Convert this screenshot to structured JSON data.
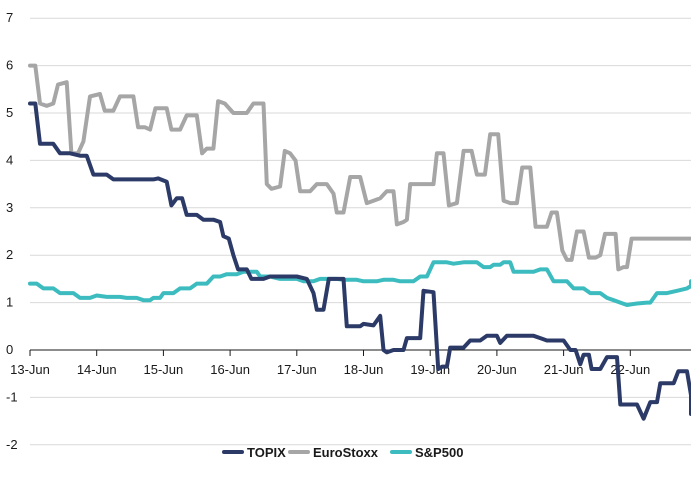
{
  "chart_data": {
    "type": "line",
    "title": "",
    "xlabel": "",
    "ylabel": "",
    "ylim": [
      -2,
      7
    ],
    "yticks": [
      -2,
      -1,
      0,
      1,
      2,
      3,
      4,
      5,
      6,
      7
    ],
    "categories": [
      "13-Jun",
      "14-Jun",
      "15-Jun",
      "16-Jun",
      "17-Jun",
      "18-Jun",
      "19-Jun",
      "20-Jun",
      "21-Jun",
      "22-Jun"
    ],
    "grid": "horizontal",
    "legend_position": "bottom-center",
    "colors": {
      "TOPIX": "#2b3a67",
      "EuroStoxx": "#a6a6a6",
      "S&P500": "#3dbcc0",
      "grid": "#d9d9d9",
      "axis": "#1a1a1a"
    },
    "series": [
      {
        "name": "TOPIX",
        "points": [
          [
            0.0,
            5.2
          ],
          [
            0.08,
            5.2
          ],
          [
            0.15,
            4.35
          ],
          [
            0.35,
            4.35
          ],
          [
            0.45,
            4.15
          ],
          [
            0.6,
            4.15
          ],
          [
            0.75,
            4.1
          ],
          [
            0.85,
            4.1
          ],
          [
            0.95,
            3.7
          ],
          [
            1.15,
            3.7
          ],
          [
            1.25,
            3.6
          ],
          [
            1.85,
            3.6
          ],
          [
            1.92,
            3.62
          ],
          [
            2.05,
            3.55
          ],
          [
            2.12,
            3.05
          ],
          [
            2.2,
            3.2
          ],
          [
            2.28,
            3.2
          ],
          [
            2.35,
            2.85
          ],
          [
            2.5,
            2.85
          ],
          [
            2.6,
            2.75
          ],
          [
            2.75,
            2.75
          ],
          [
            2.85,
            2.7
          ],
          [
            2.9,
            2.4
          ],
          [
            2.98,
            2.35
          ],
          [
            3.05,
            2.0
          ],
          [
            3.12,
            1.7
          ],
          [
            3.25,
            1.7
          ],
          [
            3.32,
            1.5
          ],
          [
            3.5,
            1.5
          ],
          [
            3.6,
            1.55
          ],
          [
            4.0,
            1.55
          ],
          [
            4.15,
            1.5
          ],
          [
            4.25,
            1.2
          ],
          [
            4.3,
            0.85
          ],
          [
            4.4,
            0.85
          ],
          [
            4.48,
            1.5
          ],
          [
            4.6,
            1.5
          ],
          [
            4.7,
            1.5
          ],
          [
            4.75,
            0.5
          ],
          [
            4.95,
            0.5
          ],
          [
            5.0,
            0.55
          ],
          [
            5.15,
            0.52
          ],
          [
            5.25,
            0.72
          ],
          [
            5.3,
            0.0
          ],
          [
            5.35,
            -0.05
          ],
          [
            5.45,
            0.0
          ],
          [
            5.6,
            0.0
          ],
          [
            5.65,
            0.25
          ],
          [
            5.75,
            0.25
          ],
          [
            5.85,
            0.25
          ],
          [
            5.9,
            1.25
          ],
          [
            6.05,
            1.22
          ],
          [
            6.12,
            -0.4
          ],
          [
            6.18,
            -0.35
          ],
          [
            6.25,
            -0.35
          ],
          [
            6.3,
            0.05
          ],
          [
            6.4,
            0.05
          ],
          [
            6.5,
            0.05
          ],
          [
            6.6,
            0.2
          ],
          [
            6.75,
            0.2
          ],
          [
            6.85,
            0.3
          ],
          [
            7.0,
            0.3
          ],
          [
            7.05,
            0.15
          ],
          [
            7.15,
            0.3
          ],
          [
            7.25,
            0.3
          ],
          [
            7.5,
            0.3
          ],
          [
            7.55,
            0.3
          ],
          [
            7.65,
            0.25
          ],
          [
            7.75,
            0.2
          ],
          [
            8.0,
            0.2
          ],
          [
            8.1,
            0.0
          ],
          [
            8.18,
            0.0
          ],
          [
            8.25,
            -0.3
          ],
          [
            8.3,
            -0.1
          ],
          [
            8.38,
            -0.1
          ],
          [
            8.42,
            -0.4
          ],
          [
            8.55,
            -0.4
          ],
          [
            8.65,
            -0.15
          ],
          [
            8.8,
            -0.15
          ],
          [
            8.85,
            -1.15
          ],
          [
            9.0,
            -1.15
          ],
          [
            9.1,
            -1.15
          ],
          [
            9.2,
            -1.45
          ],
          [
            9.3,
            -1.1
          ],
          [
            9.4,
            -1.1
          ],
          [
            9.45,
            -0.7
          ],
          [
            9.65,
            -0.7
          ],
          [
            9.72,
            -0.45
          ],
          [
            9.85,
            -0.45
          ],
          [
            9.92,
            -0.95
          ],
          [
            10.05,
            -0.95
          ],
          [
            10.15,
            -1.35
          ]
        ]
      },
      {
        "name": "EuroStoxx",
        "points": [
          [
            0.0,
            6.0
          ],
          [
            0.08,
            6.0
          ],
          [
            0.15,
            5.2
          ],
          [
            0.25,
            5.15
          ],
          [
            0.35,
            5.2
          ],
          [
            0.42,
            5.6
          ],
          [
            0.55,
            5.65
          ],
          [
            0.62,
            4.15
          ],
          [
            0.72,
            4.15
          ],
          [
            0.8,
            4.4
          ],
          [
            0.9,
            5.35
          ],
          [
            1.05,
            5.4
          ],
          [
            1.12,
            5.05
          ],
          [
            1.25,
            5.05
          ],
          [
            1.35,
            5.35
          ],
          [
            1.55,
            5.35
          ],
          [
            1.62,
            4.7
          ],
          [
            1.72,
            4.7
          ],
          [
            1.8,
            4.65
          ],
          [
            1.88,
            5.1
          ],
          [
            2.05,
            5.1
          ],
          [
            2.12,
            4.65
          ],
          [
            2.25,
            4.65
          ],
          [
            2.35,
            4.95
          ],
          [
            2.5,
            4.95
          ],
          [
            2.58,
            4.15
          ],
          [
            2.65,
            4.25
          ],
          [
            2.75,
            4.25
          ],
          [
            2.82,
            5.25
          ],
          [
            2.92,
            5.2
          ],
          [
            3.05,
            5.0
          ],
          [
            3.25,
            5.0
          ],
          [
            3.35,
            5.2
          ],
          [
            3.5,
            5.2
          ],
          [
            3.55,
            3.5
          ],
          [
            3.62,
            3.4
          ],
          [
            3.75,
            3.45
          ],
          [
            3.82,
            4.2
          ],
          [
            3.9,
            4.15
          ],
          [
            3.98,
            4.0
          ],
          [
            4.05,
            3.35
          ],
          [
            4.2,
            3.35
          ],
          [
            4.3,
            3.5
          ],
          [
            4.45,
            3.5
          ],
          [
            4.55,
            3.3
          ],
          [
            4.6,
            2.9
          ],
          [
            4.7,
            2.9
          ],
          [
            4.8,
            3.65
          ],
          [
            4.95,
            3.65
          ],
          [
            5.05,
            3.1
          ],
          [
            5.15,
            3.15
          ],
          [
            5.25,
            3.2
          ],
          [
            5.35,
            3.35
          ],
          [
            5.45,
            3.35
          ],
          [
            5.5,
            2.65
          ],
          [
            5.6,
            2.7
          ],
          [
            5.65,
            2.75
          ],
          [
            5.7,
            3.5
          ],
          [
            5.85,
            3.5
          ],
          [
            5.95,
            3.5
          ],
          [
            6.05,
            3.5
          ],
          [
            6.1,
            4.15
          ],
          [
            6.2,
            4.15
          ],
          [
            6.28,
            3.05
          ],
          [
            6.4,
            3.1
          ],
          [
            6.5,
            4.2
          ],
          [
            6.62,
            4.2
          ],
          [
            6.7,
            3.7
          ],
          [
            6.82,
            3.7
          ],
          [
            6.9,
            4.55
          ],
          [
            7.02,
            4.55
          ],
          [
            7.1,
            3.15
          ],
          [
            7.2,
            3.1
          ],
          [
            7.3,
            3.1
          ],
          [
            7.38,
            3.85
          ],
          [
            7.5,
            3.85
          ],
          [
            7.58,
            2.6
          ],
          [
            7.7,
            2.6
          ],
          [
            7.75,
            2.6
          ],
          [
            7.82,
            2.9
          ],
          [
            7.9,
            2.9
          ],
          [
            7.98,
            2.1
          ],
          [
            8.05,
            1.9
          ],
          [
            8.12,
            1.9
          ],
          [
            8.2,
            2.5
          ],
          [
            8.3,
            2.5
          ],
          [
            8.38,
            1.95
          ],
          [
            8.48,
            1.95
          ],
          [
            8.55,
            2.0
          ],
          [
            8.62,
            2.45
          ],
          [
            8.78,
            2.45
          ],
          [
            8.82,
            1.7
          ],
          [
            8.9,
            1.75
          ],
          [
            8.95,
            1.75
          ],
          [
            9.02,
            2.35
          ],
          [
            9.3,
            2.35
          ],
          [
            9.4,
            2.35
          ],
          [
            9.6,
            2.35
          ],
          [
            9.7,
            2.35
          ],
          [
            10.15,
            2.35
          ]
        ]
      },
      {
        "name": "S&P500",
        "points": [
          [
            0.0,
            1.4
          ],
          [
            0.1,
            1.4
          ],
          [
            0.2,
            1.3
          ],
          [
            0.35,
            1.3
          ],
          [
            0.45,
            1.2
          ],
          [
            0.65,
            1.2
          ],
          [
            0.75,
            1.1
          ],
          [
            0.9,
            1.1
          ],
          [
            1.0,
            1.15
          ],
          [
            1.15,
            1.12
          ],
          [
            1.35,
            1.12
          ],
          [
            1.45,
            1.1
          ],
          [
            1.6,
            1.1
          ],
          [
            1.7,
            1.05
          ],
          [
            1.8,
            1.05
          ],
          [
            1.85,
            1.1
          ],
          [
            1.95,
            1.1
          ],
          [
            2.0,
            1.2
          ],
          [
            2.15,
            1.2
          ],
          [
            2.25,
            1.3
          ],
          [
            2.4,
            1.3
          ],
          [
            2.5,
            1.4
          ],
          [
            2.65,
            1.4
          ],
          [
            2.75,
            1.55
          ],
          [
            2.85,
            1.55
          ],
          [
            2.95,
            1.6
          ],
          [
            3.1,
            1.6
          ],
          [
            3.2,
            1.65
          ],
          [
            3.4,
            1.65
          ],
          [
            3.45,
            1.55
          ],
          [
            3.6,
            1.55
          ],
          [
            3.75,
            1.5
          ],
          [
            3.9,
            1.5
          ],
          [
            4.0,
            1.5
          ],
          [
            4.1,
            1.45
          ],
          [
            4.25,
            1.45
          ],
          [
            4.35,
            1.5
          ],
          [
            4.6,
            1.5
          ],
          [
            4.7,
            1.48
          ],
          [
            4.9,
            1.48
          ],
          [
            5.0,
            1.45
          ],
          [
            5.2,
            1.45
          ],
          [
            5.3,
            1.48
          ],
          [
            5.45,
            1.48
          ],
          [
            5.55,
            1.45
          ],
          [
            5.75,
            1.45
          ],
          [
            5.85,
            1.55
          ],
          [
            5.95,
            1.55
          ],
          [
            6.05,
            1.85
          ],
          [
            6.25,
            1.85
          ],
          [
            6.35,
            1.82
          ],
          [
            6.5,
            1.85
          ],
          [
            6.7,
            1.85
          ],
          [
            6.8,
            1.75
          ],
          [
            6.9,
            1.75
          ],
          [
            6.95,
            1.8
          ],
          [
            7.05,
            1.8
          ],
          [
            7.1,
            1.85
          ],
          [
            7.2,
            1.85
          ],
          [
            7.25,
            1.65
          ],
          [
            7.5,
            1.65
          ],
          [
            7.55,
            1.65
          ],
          [
            7.65,
            1.7
          ],
          [
            7.75,
            1.7
          ],
          [
            7.85,
            1.45
          ],
          [
            7.95,
            1.45
          ],
          [
            8.05,
            1.45
          ],
          [
            8.15,
            1.3
          ],
          [
            8.3,
            1.3
          ],
          [
            8.4,
            1.2
          ],
          [
            8.55,
            1.2
          ],
          [
            8.65,
            1.1
          ],
          [
            8.75,
            1.05
          ],
          [
            8.85,
            1.0
          ],
          [
            8.95,
            0.95
          ],
          [
            9.1,
            0.98
          ],
          [
            9.25,
            1.0
          ],
          [
            9.3,
            1.0
          ],
          [
            9.4,
            1.2
          ],
          [
            9.55,
            1.2
          ],
          [
            9.7,
            1.25
          ],
          [
            9.85,
            1.3
          ],
          [
            10.0,
            1.35
          ],
          [
            10.1,
            1.35
          ],
          [
            10.15,
            1.45
          ]
        ]
      }
    ]
  }
}
